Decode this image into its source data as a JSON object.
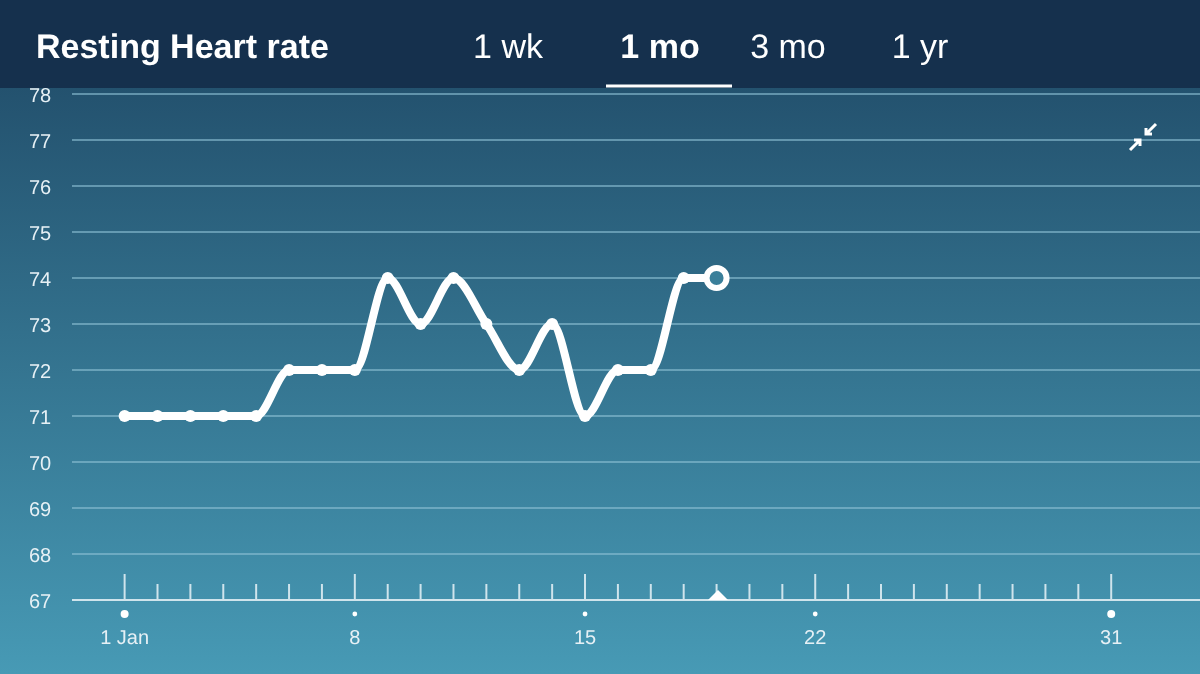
{
  "chart_data": {
    "type": "line",
    "title": "Resting Heart rate",
    "annotations": [
      "1 wk",
      "1 mo",
      "3 mo",
      "1 yr"
    ],
    "x": [
      1,
      2,
      3,
      4,
      5,
      6,
      7,
      8,
      9,
      10,
      11,
      12,
      13,
      14,
      15,
      16,
      17,
      18,
      19
    ],
    "series": [
      {
        "color": "#ffffff",
        "values": [
          71,
          71,
          71,
          71,
          71,
          72,
          72,
          72,
          74,
          73,
          74,
          73,
          72,
          73,
          71,
          72,
          72,
          74,
          74
        ]
      }
    ],
    "xlim": [
      -0.6,
      33.7
    ],
    "xticks": [
      {
        "value": 1,
        "label": "1 Jan"
      },
      8,
      15,
      22,
      31
    ],
    "ylim": [
      67,
      78
    ],
    "yticks": [
      67,
      68,
      69,
      70,
      71,
      72,
      73,
      74,
      75,
      76,
      77,
      78
    ],
    "grid": "y",
    "marker": "circle",
    "line_style": "solid"
  }
}
